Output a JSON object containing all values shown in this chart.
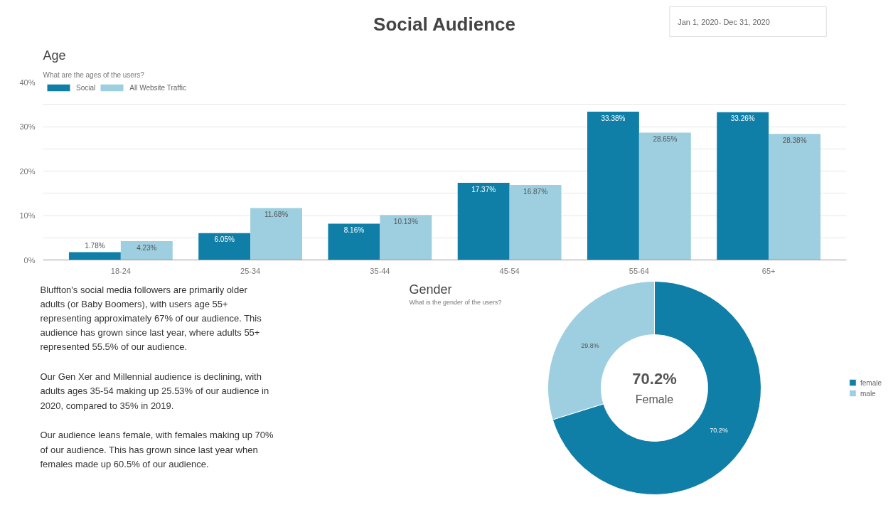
{
  "chart_data": [
    {
      "type": "other",
      "title": "Social Audience",
      "annotations": [
        "Jan 1, 2020- Dec 31, 2020"
      ]
    },
    {
      "type": "bar",
      "title": "Age",
      "subtitle": "What are the ages of the users?",
      "categories": [
        "18-24",
        "25-34",
        "35-44",
        "45-54",
        "55-64",
        "65+"
      ],
      "series": [
        {
          "name": "Social",
          "color": "#0f7fa8",
          "values": [
            1.78,
            6.05,
            8.16,
            17.37,
            33.38,
            33.26
          ],
          "value_labels": [
            "1.78%",
            "6.05%",
            "8.16%",
            "17.37%",
            "33.38%",
            "33.26%"
          ]
        },
        {
          "name": "All Website Traffic",
          "color": "#9dcfe0",
          "values": [
            4.23,
            11.68,
            10.13,
            16.87,
            28.65,
            28.38
          ],
          "value_labels": [
            "4.23%",
            "11.68%",
            "10.13%",
            "16.87%",
            "28.65%",
            "28.38%"
          ]
        }
      ],
      "ylim": [
        0,
        40
      ],
      "yticks": [
        {
          "value": 0,
          "label": "0%"
        },
        {
          "value": 5,
          "label": null
        },
        {
          "value": 10,
          "label": "10%"
        },
        {
          "value": 15,
          "label": null
        },
        {
          "value": 20,
          "label": "20%"
        },
        {
          "value": 25,
          "label": null
        },
        {
          "value": 30,
          "label": "30%"
        },
        {
          "value": 35,
          "label": null
        },
        {
          "value": 40,
          "label": "40%"
        }
      ],
      "grid": "y",
      "legend": "top left"
    },
    {
      "type": "other",
      "annotations": [
        "Bluffton's social media followers are primarily older adults (or Baby Boomers), with users age 55+ representing approximately 67% of our audience. This audience has grown since last year, where adults 55+ represented 55.5% of our audience.",
        "Our Gen Xer and Millennial audience is declining, with adults ages 35-54 making up 25.53% of our audience in 2020, compared to 35% in 2019.",
        "Our audience leans female, with females making up 70% of our audience. This has grown since last year when females made up 60.5% of our audience."
      ]
    },
    {
      "type": "donut",
      "title": "Gender",
      "subtitle": "What is the gender of the users?",
      "categories": [
        "female",
        "male"
      ],
      "values": [
        70.2,
        29.8
      ],
      "colors": [
        "#0f7fa8",
        "#9dcfe0"
      ],
      "value_labels": [
        "70.2%",
        "29.8%"
      ],
      "annotations": [
        "70.2%",
        "Female"
      ],
      "legend": "right"
    }
  ]
}
